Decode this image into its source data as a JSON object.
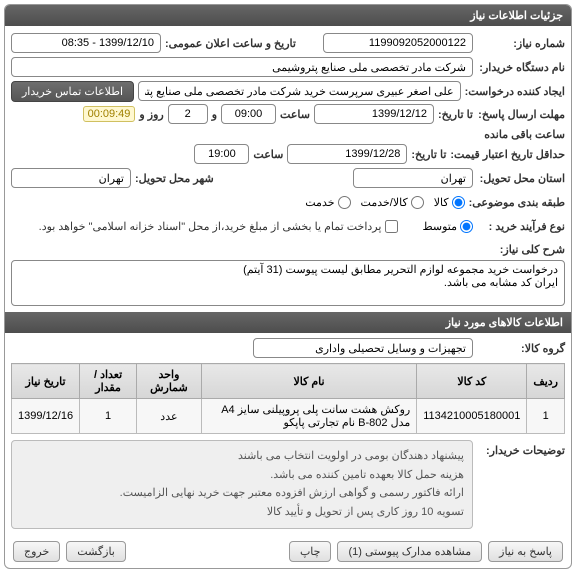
{
  "header": {
    "title": "جزئیات اطلاعات نیاز"
  },
  "labels": {
    "need_no": "شماره نیاز:",
    "announce_datetime": "تاریخ و ساعت اعلان عمومی:",
    "buyer_org": "نام دستگاه خریدار:",
    "creator": "ایجاد کننده درخواست:",
    "contact_btn": "اطلاعات تماس خریدار",
    "reply_deadline": "مهلت ارسال پاسخ:",
    "until_date": "تا تاریخ:",
    "hour": "ساعت",
    "and": "و",
    "day": "روز و",
    "hours_remain": "ساعت باقی مانده",
    "price_validity": "حداقل تاریخ اعتبار قیمت:",
    "delivery_province": "استان محل تحویل:",
    "delivery_city": "شهر محل تحویل:",
    "category": "طبقه بندی موضوعی:",
    "goods": "کالا",
    "goods_service": "کالا/خدمت",
    "service": "خدمت",
    "process_type": "نوع فرآیند خرید :",
    "medium": "متوسط",
    "partial_pay": "پرداخت تمام یا بخشی از مبلغ خرید،از محل \"اسناد خزانه اسلامی\" خواهد بود.",
    "general_desc": "شرح کلی نیاز:",
    "goods_info_header": "اطلاعات کالاهای مورد نیاز",
    "goods_group": "گروه کالا:",
    "row": "ردیف",
    "goods_code": "کد کالا",
    "goods_name": "نام کالا",
    "unit": "واحد شمارش",
    "qty": "تعداد / مقدار",
    "need_date": "تاریخ نیاز",
    "buyer_notes": "توضیحات خریدار:",
    "reply_btn": "پاسخ به نیاز",
    "attachments_btn": "مشاهده مدارک پیوستی (1)",
    "print_btn": "چاپ",
    "back_btn": "بازگشت",
    "exit_btn": "خروج"
  },
  "values": {
    "need_no": "1199092052000122",
    "announce_datetime": "1399/12/10 - 08:35",
    "buyer_org": "شرکت مادر تخصصی ملی صنایع پتروشیمی",
    "creator": "علی اصغر عبیری سرپرست خرید شرکت مادر تخصصی ملی صنایع پتروشیمی",
    "reply_date": "1399/12/12",
    "reply_hour": "09:00",
    "days_remain": "2",
    "time_remain": "00:09:49",
    "price_validity_date": "1399/12/28",
    "price_validity_hour": "19:00",
    "province": "تهران",
    "city": "تهران",
    "category_selected": "goods",
    "process_type": "medium",
    "partial_pay_checked": false,
    "general_desc": "درخواست خرید مجموعه لوازم التحریر مطابق لیست پیوست (31 آیتم)\nایران کد مشابه می باشد.",
    "goods_group": "تجهیزات و وسایل تحصیلی واداری",
    "table": {
      "rows": [
        {
          "idx": "1",
          "code": "1134210005180001",
          "name": "روکش هشت سانت پلی پروپیلنی سایز A4 مدل 802-B نام تجارتی پاپکو",
          "unit": "عدد",
          "qty": "1",
          "date": "1399/12/16"
        }
      ]
    },
    "buyer_notes": "پیشنهاد دهندگان بومی در اولویت انتخاب می باشند\nهزینه حمل کالا بعهده تامین کننده می باشد.\nارائه فاکتور رسمی و گواهی ارزش افزوده معتبر جهت خرید نهایی الزامیست.\nتسویه 10 روز کاری پس از تحویل و تأیید کالا"
  }
}
